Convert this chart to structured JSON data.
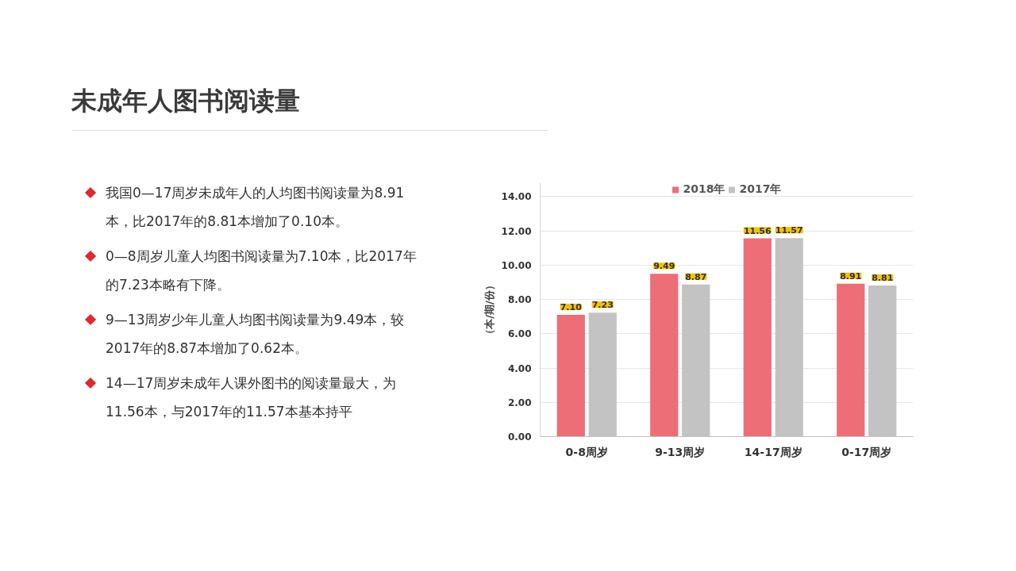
{
  "chart_data": {
    "type": "bar",
    "title": "未成年人图书阅读量",
    "ylabel": "（本/期/份）",
    "categories": [
      "0-8周岁",
      "9-13周岁",
      "14-17周岁",
      "0-17周岁"
    ],
    "series": [
      {
        "name": "2018年",
        "color": "#ee6e78",
        "values": [
          7.1,
          9.49,
          11.56,
          8.91
        ],
        "value_labels": [
          "7.10",
          "9.49",
          "11.56",
          "8.91"
        ]
      },
      {
        "name": "2017年",
        "color": "#c3c3c3",
        "values": [
          7.23,
          8.87,
          11.57,
          8.81
        ],
        "value_labels": [
          "7.23",
          "8.87",
          "11.57",
          "8.81"
        ]
      }
    ],
    "ylim": [
      0,
      14.8
    ],
    "yticks": [
      {
        "value": 0,
        "label": "0.00"
      },
      {
        "value": 2,
        "label": "2.00"
      },
      {
        "value": 4,
        "label": "4.00"
      },
      {
        "value": 6,
        "label": "6.00"
      },
      {
        "value": 8,
        "label": "8.00"
      },
      {
        "value": 10,
        "label": "10.00"
      },
      {
        "value": 12,
        "label": "12.00"
      },
      {
        "value": 14,
        "label": "14.00"
      }
    ],
    "grid": "y",
    "legend": "top",
    "annotations": [
      "我国0—17周岁未成年人的人均图书阅读量为8.91本，比2017年的8.81本增加了0.10本。",
      "0—8周岁儿童人均图书阅读量为7.10本，比2017年的7.23本略有下降。",
      "9—13周岁少年儿童人均图书阅读量为9.49本，较2017年的8.87本增加了0.62本。",
      "14—17周岁未成年人课外图书的阅读量最大，为11.56本，与2017年的11.57本基本持平"
    ]
  }
}
